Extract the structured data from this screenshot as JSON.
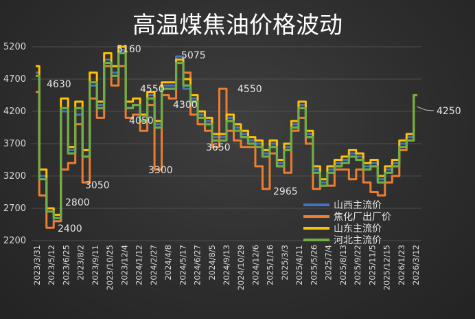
{
  "chart_data": {
    "type": "line",
    "title": "高温煤焦油价格波动",
    "xlabel": "",
    "ylabel": "",
    "ylim": [
      2200,
      5200
    ],
    "yticks": [
      2200,
      2700,
      3200,
      3700,
      4200,
      4700,
      5200
    ],
    "xtick_labels": [
      "2023/3/31",
      "2023/5/12",
      "2023/6/25",
      "2023/8/2",
      "2023/9/11",
      "2023/10/25",
      "2023/12/4",
      "2024/1/12",
      "2024/2/27",
      "2024/4/8",
      "2024/5/17",
      "2024/6/27",
      "2024/8/5",
      "2024/9/13",
      "2024/10/29",
      "2024/12/6",
      "2025/1/16",
      "2025/3/3",
      "2025/4/11",
      "2025/5/26",
      "2025/7/4",
      "2025/8/13",
      "2025/9/22",
      "2025/11/5",
      "2025/12/15",
      "2026/1/23",
      "2026/3/12"
    ],
    "grid": "horizontal",
    "legend_position": "bottom-right",
    "annotations": [
      "4630",
      "2800",
      "2400",
      "3050",
      "5160",
      "4550",
      "4050",
      "3300",
      "5075",
      "4300",
      "3650",
      "4550",
      "2965",
      "4250"
    ],
    "series": [
      {
        "name": "山西主流价",
        "color": "#4472c4",
        "values": [
          4800,
          3200,
          2700,
          2500,
          4200,
          3600,
          4150,
          3500,
          4600,
          4300,
          5000,
          4800,
          5150,
          4250,
          4300,
          4050,
          4450,
          4000,
          4600,
          4600,
          5050,
          4550,
          4400,
          4150,
          4050,
          3800,
          3800,
          4100,
          3950,
          3850,
          3750,
          3700,
          3550,
          3700,
          3400,
          3650,
          4000,
          4300,
          3850,
          3300,
          3100,
          3300,
          3400,
          3450,
          3550,
          3500,
          3350,
          3400,
          3150,
          3300,
          3400,
          3700,
          3800,
          4450
        ]
      },
      {
        "name": "焦化厂出厂价",
        "color": "#ed7d31",
        "values": [
          4500,
          2900,
          2400,
          2500,
          3300,
          3400,
          4000,
          3100,
          4400,
          4100,
          4900,
          4600,
          4900,
          4100,
          4150,
          3900,
          4300,
          3300,
          4450,
          4400,
          4950,
          4800,
          4150,
          4000,
          3900,
          3650,
          4550,
          3900,
          3750,
          3650,
          3650,
          3350,
          3000,
          3550,
          3350,
          3250,
          3900,
          4100,
          3700,
          3000,
          3050,
          3050,
          3300,
          3300,
          3150,
          3300,
          3100,
          2950,
          2900,
          3100,
          3200,
          3600,
          3750,
          4450
        ]
      },
      {
        "name": "山东主流价",
        "color": "#ffc000",
        "values": [
          4900,
          3300,
          2700,
          2600,
          4400,
          3650,
          4350,
          3600,
          4800,
          4350,
          5100,
          4900,
          5200,
          4350,
          4400,
          4150,
          4500,
          4050,
          4650,
          4650,
          5000,
          4700,
          4450,
          4200,
          4100,
          3850,
          3850,
          4150,
          4000,
          3900,
          3800,
          3750,
          3600,
          3750,
          3450,
          3700,
          4050,
          4350,
          3900,
          3350,
          3150,
          3350,
          3450,
          3500,
          3600,
          3550,
          3400,
          3450,
          3200,
          3350,
          3450,
          3750,
          3850,
          4450
        ]
      },
      {
        "name": "河北主流价",
        "color": "#70ad47",
        "values": [
          4750,
          3150,
          2650,
          2550,
          4250,
          3550,
          4250,
          3500,
          4650,
          4250,
          4950,
          4750,
          5100,
          4250,
          4300,
          4050,
          4400,
          3950,
          4550,
          4550,
          4950,
          4600,
          4350,
          4100,
          4000,
          3750,
          3750,
          4050,
          3900,
          3800,
          3700,
          3650,
          3500,
          3650,
          3350,
          3600,
          3950,
          4250,
          3800,
          3250,
          3050,
          3250,
          3350,
          3400,
          3500,
          3450,
          3300,
          3350,
          3100,
          3250,
          3350,
          3650,
          3750,
          4450
        ]
      }
    ]
  }
}
